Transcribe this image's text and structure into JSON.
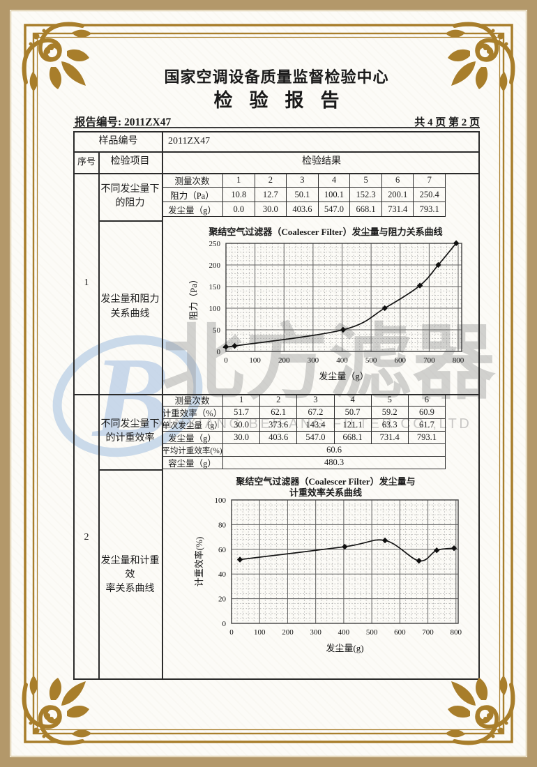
{
  "header": {
    "org_title": "国家空调设备质量监督检验中心",
    "report_title": "检验报告",
    "report_no_label": "报告编号: 2011ZX47",
    "page_info": "共 4 页 第 2 页"
  },
  "table": {
    "sample_no_label": "样品编号",
    "sample_no_value": "2011ZX47",
    "col_serial": "序号",
    "col_item": "检验项目",
    "col_result": "检验结果",
    "sections": [
      {
        "serial": "1",
        "item_table": "不同发尘量下\n的阻力",
        "item_chart": "发尘量和阻力\n关系曲线"
      },
      {
        "serial": "2",
        "item_table": "不同发尘量下\n的计重效率",
        "item_chart": "发尘量和计重效\n率关系曲线"
      }
    ],
    "tableA": {
      "row_labels": [
        "测量次数",
        "阻力（Pa）",
        "发尘量（g）"
      ],
      "counts": [
        "1",
        "2",
        "3",
        "4",
        "5",
        "6",
        "7"
      ],
      "resistance": [
        "10.8",
        "12.7",
        "50.1",
        "100.1",
        "152.3",
        "200.1",
        "250.4"
      ],
      "dust": [
        "0.0",
        "30.0",
        "403.6",
        "547.0",
        "668.1",
        "731.4",
        "793.1"
      ]
    },
    "tableB": {
      "row_labels": [
        "测量次数",
        "计重效率（%）",
        "单次发尘量（g）",
        "发尘量（g）",
        "平均计重效率(%)",
        "容尘量（g）"
      ],
      "counts": [
        "1",
        "2",
        "3",
        "4",
        "5",
        "6"
      ],
      "efficiency": [
        "51.7",
        "62.1",
        "67.2",
        "50.7",
        "59.2",
        "60.9"
      ],
      "single_dust": [
        "30.0",
        "373.6",
        "143.4",
        "121.1",
        "63.3",
        "61.7"
      ],
      "dust": [
        "30.0",
        "403.6",
        "547.0",
        "668.1",
        "731.4",
        "793.1"
      ],
      "avg_efficiency": "60.6",
      "dust_capacity": "480.3"
    }
  },
  "watermark": {
    "logo_letter": "B",
    "cn": "北方滤器",
    "en": "XINXIANG BEIFANG FILTER CO.,LTD"
  },
  "chart_data": [
    {
      "type": "line",
      "title": "聚结空气过滤器（Coalescer Filter）发尘量与阻力关系曲线",
      "xlabel": "发尘量（g）",
      "ylabel": "阻力（Pa）",
      "x": [
        0,
        30.0,
        403.6,
        547.0,
        668.1,
        731.4,
        793.1
      ],
      "y": [
        10.8,
        12.7,
        50.1,
        100.1,
        152.3,
        200.1,
        250.4
      ],
      "xlim": [
        0,
        812
      ],
      "ylim": [
        0,
        250
      ],
      "xticks": [
        0,
        100,
        200,
        300,
        400,
        500,
        600,
        700,
        800
      ],
      "yticks": [
        0,
        50,
        100,
        150,
        200,
        250
      ],
      "xminor": 20,
      "yminor": 10,
      "grid": true,
      "marker": "diamond",
      "legend": "none"
    },
    {
      "type": "line",
      "title": "聚结空气过滤器（Coalescer Filter）发尘量与计重效率关系曲线",
      "title_lines": [
        "聚结空气过滤器（Coalescer Filter）发尘量与",
        "计重效率关系曲线"
      ],
      "xlabel": "发尘量(g)",
      "ylabel": "计重效率(%)",
      "x": [
        30.0,
        403.6,
        547.0,
        668.1,
        731.4,
        793.1
      ],
      "y": [
        51.7,
        62.1,
        67.2,
        50.7,
        59.2,
        60.9
      ],
      "xlim": [
        0,
        808
      ],
      "ylim": [
        0,
        100
      ],
      "xticks": [
        0,
        100,
        200,
        300,
        400,
        500,
        600,
        700,
        800
      ],
      "yticks": [
        0,
        20,
        40,
        60,
        80,
        100
      ],
      "xminor": 20,
      "yminor": 4,
      "grid": true,
      "marker": "diamond",
      "legend": "none"
    }
  ],
  "colors": {
    "frame_gold": "#a87e2b",
    "outer_band": "#b3986a",
    "watermark_blue": "#b9cfe6",
    "watermark_gray": "#9e9e9e",
    "ink": "#1a1a1a"
  }
}
